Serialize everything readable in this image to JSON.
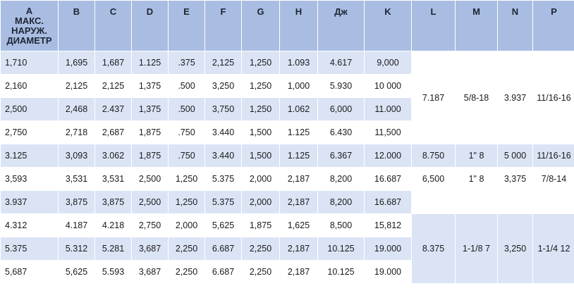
{
  "headers": [
    "А",
    "B",
    "C",
    "D",
    "E",
    "F",
    "G",
    "H",
    "Дж",
    "K",
    "L",
    "M",
    "N",
    "P"
  ],
  "header_sub": [
    "МАКС.",
    "НАРУЖ.",
    "ДИАМЕТР"
  ],
  "rows": [
    [
      "1,710",
      "1,695",
      "1,687",
      "1.125",
      ".375",
      "2,125",
      "1,250",
      "1.093",
      "4.617",
      "9,000"
    ],
    [
      "2,160",
      "2,125",
      "2,125",
      "1,375",
      ".500",
      "3,250",
      "1,250",
      "1,000",
      "5.930",
      "10 000"
    ],
    [
      "2,500",
      "2,468",
      "2.437",
      "1,375",
      ".500",
      "3,750",
      "1,250",
      "1.062",
      "6,000",
      "11.000"
    ],
    [
      "2,750",
      "2,718",
      "2,687",
      "1,875",
      ".750",
      "3.440",
      "1,500",
      "1.125",
      "6.430",
      "11,500"
    ],
    [
      "3.125",
      "3,093",
      "3.062",
      "1,875",
      ".750",
      "3.440",
      "1,500",
      "1.125",
      "6.367",
      "12.000"
    ],
    [
      "3,593",
      "3,531",
      "3,531",
      "2,500",
      "1,250",
      "5.375",
      "2,000",
      "2,187",
      "8,200",
      "16.687"
    ],
    [
      "3.937",
      "3,875",
      "3,875",
      "2,500",
      "1,250",
      "5.375",
      "2,000",
      "2,187",
      "8,200",
      "16.687"
    ],
    [
      "4.312",
      "4.187",
      "4.218",
      "2,750",
      "2,000",
      "5,625",
      "1,875",
      "1,625",
      "8,500",
      "15,812"
    ],
    [
      "5.375",
      "5.312",
      "5.281",
      "3,687",
      "2,250",
      "6.687",
      "2,250",
      "2,187",
      "10.125",
      "19.000"
    ],
    [
      "5,687",
      "5,625",
      "5.593",
      "3,687",
      "2,250",
      "6.687",
      "2,250",
      "2,187",
      "10.125",
      "19.000"
    ]
  ],
  "merged_groups": [
    {
      "values": [
        "7.187",
        "5/8-18",
        "3.937",
        "11/16-16"
      ]
    },
    {
      "values": [
        "8.750",
        "1\" 8",
        "5 000",
        "11/16-16"
      ]
    },
    {
      "values": [
        "6,500",
        "1\" 8",
        "3,375",
        "7/8-14"
      ]
    },
    {
      "values": [
        "8.375",
        "1-1/8 7",
        "3,250",
        "1-1/4 12"
      ]
    }
  ]
}
